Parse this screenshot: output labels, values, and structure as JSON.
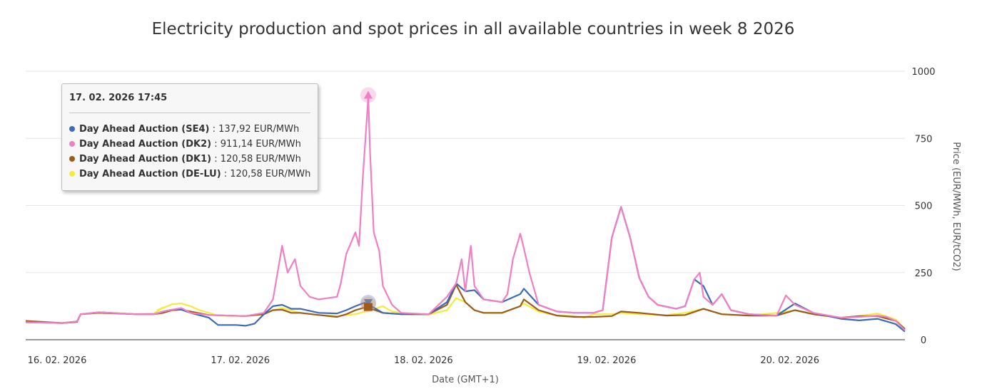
{
  "chart_data": {
    "type": "line",
    "title": "Electricity production and spot prices in all available countries in week 8 2026",
    "xlabel": "Date (GMT+1)",
    "ylabel": "Price (EUR/MWh, EUR/tCO2)",
    "ylim": [
      0,
      1000
    ],
    "xlim": [
      0,
      4.8
    ],
    "y_ticks": [
      "0",
      "250",
      "500",
      "750",
      "1000"
    ],
    "x_ticks": [
      {
        "label": "16. 02. 2026",
        "day": 0
      },
      {
        "label": "17. 02. 2026",
        "day": 1
      },
      {
        "label": "18. 02. 2026",
        "day": 2
      },
      {
        "label": "19. 02. 2026",
        "day": 3
      },
      {
        "label": "20. 02. 2026",
        "day": 4
      }
    ],
    "grid": true,
    "series": [
      {
        "name": "Day Ahead Auction (DE-LU)",
        "color": "#f2ec3a",
        "points": [
          [
            0,
            65
          ],
          [
            0.2,
            63
          ],
          [
            0.28,
            68
          ],
          [
            0.3,
            95
          ],
          [
            0.4,
            102
          ],
          [
            0.6,
            96
          ],
          [
            0.7,
            98
          ],
          [
            0.75,
            120
          ],
          [
            0.72,
            110
          ],
          [
            0.8,
            132
          ],
          [
            0.85,
            135
          ],
          [
            0.9,
            125
          ],
          [
            0.95,
            110
          ],
          [
            1.05,
            90
          ],
          [
            1.2,
            88
          ],
          [
            1.3,
            98
          ],
          [
            1.35,
            110
          ],
          [
            1.4,
            118
          ],
          [
            1.5,
            100
          ],
          [
            1.6,
            92
          ],
          [
            1.7,
            88
          ],
          [
            1.8,
            95
          ],
          [
            1.88,
            110
          ],
          [
            1.95,
            125
          ],
          [
            2.0,
            105
          ],
          [
            2.1,
            95
          ],
          [
            2.2,
            94
          ],
          [
            2.3,
            110
          ],
          [
            2.35,
            155
          ],
          [
            2.4,
            140
          ],
          [
            2.45,
            110
          ],
          [
            2.5,
            100
          ],
          [
            2.6,
            100
          ],
          [
            2.7,
            125
          ],
          [
            2.72,
            135
          ],
          [
            2.8,
            105
          ],
          [
            2.9,
            90
          ],
          [
            3.0,
            88
          ],
          [
            3.05,
            82
          ],
          [
            3.1,
            95
          ],
          [
            3.2,
            95
          ],
          [
            3.25,
            100
          ],
          [
            3.35,
            95
          ],
          [
            3.5,
            92
          ],
          [
            3.6,
            100
          ],
          [
            3.7,
            115
          ],
          [
            3.8,
            95
          ],
          [
            3.95,
            90
          ],
          [
            4.1,
            100
          ],
          [
            4.2,
            110
          ],
          [
            4.35,
            90
          ],
          [
            4.45,
            82
          ],
          [
            4.55,
            88
          ],
          [
            4.65,
            98
          ],
          [
            4.75,
            75
          ],
          [
            4.8,
            40
          ]
        ]
      },
      {
        "name": "Day Ahead Auction (DK1)",
        "color": "#9c5a1c",
        "points": [
          [
            0,
            70
          ],
          [
            0.2,
            62
          ],
          [
            0.28,
            66
          ],
          [
            0.3,
            95
          ],
          [
            0.4,
            100
          ],
          [
            0.6,
            95
          ],
          [
            0.7,
            95
          ],
          [
            0.75,
            100
          ],
          [
            0.8,
            110
          ],
          [
            0.85,
            112
          ],
          [
            0.9,
            105
          ],
          [
            1.0,
            92
          ],
          [
            1.2,
            88
          ],
          [
            1.3,
            95
          ],
          [
            1.35,
            110
          ],
          [
            1.4,
            112
          ],
          [
            1.45,
            100
          ],
          [
            1.5,
            100
          ],
          [
            1.6,
            92
          ],
          [
            1.7,
            85
          ],
          [
            1.75,
            95
          ],
          [
            1.8,
            110
          ],
          [
            1.85,
            120
          ],
          [
            1.9,
            112
          ],
          [
            1.95,
            100
          ],
          [
            2.05,
            95
          ],
          [
            2.2,
            95
          ],
          [
            2.3,
            130
          ],
          [
            2.35,
            205
          ],
          [
            2.4,
            140
          ],
          [
            2.45,
            110
          ],
          [
            2.5,
            100
          ],
          [
            2.6,
            100
          ],
          [
            2.7,
            125
          ],
          [
            2.72,
            150
          ],
          [
            2.8,
            110
          ],
          [
            2.9,
            90
          ],
          [
            3.0,
            85
          ],
          [
            3.1,
            85
          ],
          [
            3.2,
            88
          ],
          [
            3.25,
            105
          ],
          [
            3.35,
            100
          ],
          [
            3.5,
            90
          ],
          [
            3.6,
            92
          ],
          [
            3.7,
            115
          ],
          [
            3.8,
            95
          ],
          [
            3.95,
            90
          ],
          [
            4.1,
            90
          ],
          [
            4.2,
            110
          ],
          [
            4.3,
            95
          ],
          [
            4.45,
            82
          ],
          [
            4.55,
            88
          ],
          [
            4.65,
            88
          ],
          [
            4.75,
            70
          ],
          [
            4.8,
            40
          ]
        ]
      },
      {
        "name": "Day Ahead Auction (SE4)",
        "color": "#3d6bb8",
        "points": [
          [
            0,
            65
          ],
          [
            0.2,
            62
          ],
          [
            0.28,
            68
          ],
          [
            0.3,
            95
          ],
          [
            0.4,
            102
          ],
          [
            0.6,
            95
          ],
          [
            0.7,
            95
          ],
          [
            0.75,
            105
          ],
          [
            0.8,
            112
          ],
          [
            0.85,
            112
          ],
          [
            0.9,
            100
          ],
          [
            1.0,
            82
          ],
          [
            1.05,
            55
          ],
          [
            1.15,
            55
          ],
          [
            1.2,
            52
          ],
          [
            1.25,
            60
          ],
          [
            1.3,
            95
          ],
          [
            1.35,
            125
          ],
          [
            1.4,
            130
          ],
          [
            1.45,
            115
          ],
          [
            1.5,
            115
          ],
          [
            1.6,
            100
          ],
          [
            1.7,
            98
          ],
          [
            1.75,
            110
          ],
          [
            1.8,
            125
          ],
          [
            1.85,
            138
          ],
          [
            1.9,
            120
          ],
          [
            1.95,
            100
          ],
          [
            2.05,
            95
          ],
          [
            2.2,
            95
          ],
          [
            2.3,
            140
          ],
          [
            2.35,
            210
          ],
          [
            2.4,
            180
          ],
          [
            2.45,
            185
          ],
          [
            2.5,
            150
          ],
          [
            2.6,
            140
          ],
          [
            2.7,
            170
          ],
          [
            2.72,
            190
          ],
          [
            2.8,
            130
          ],
          [
            2.9,
            105
          ],
          [
            3.0,
            100
          ],
          [
            3.1,
            100
          ],
          [
            3.15,
            110
          ],
          [
            3.2,
            380
          ],
          [
            3.25,
            495
          ],
          [
            3.3,
            380
          ],
          [
            3.35,
            230
          ],
          [
            3.4,
            160
          ],
          [
            3.45,
            130
          ],
          [
            3.55,
            115
          ],
          [
            3.6,
            125
          ],
          [
            3.65,
            225
          ],
          [
            3.7,
            200
          ],
          [
            3.75,
            130
          ],
          [
            3.8,
            170
          ],
          [
            3.85,
            110
          ],
          [
            3.95,
            95
          ],
          [
            4.1,
            90
          ],
          [
            4.2,
            135
          ],
          [
            4.3,
            100
          ],
          [
            4.45,
            78
          ],
          [
            4.55,
            72
          ],
          [
            4.65,
            78
          ],
          [
            4.75,
            58
          ],
          [
            4.8,
            30
          ]
        ]
      },
      {
        "name": "Day Ahead Auction (DK2)",
        "color": "#f07fc4",
        "points": [
          [
            0,
            65
          ],
          [
            0.2,
            62
          ],
          [
            0.28,
            68
          ],
          [
            0.3,
            95
          ],
          [
            0.4,
            102
          ],
          [
            0.6,
            95
          ],
          [
            0.7,
            95
          ],
          [
            0.75,
            105
          ],
          [
            0.8,
            112
          ],
          [
            0.85,
            118
          ],
          [
            0.9,
            100
          ],
          [
            1.0,
            92
          ],
          [
            1.2,
            88
          ],
          [
            1.3,
            100
          ],
          [
            1.35,
            150
          ],
          [
            1.4,
            350
          ],
          [
            1.43,
            250
          ],
          [
            1.47,
            300
          ],
          [
            1.5,
            200
          ],
          [
            1.55,
            160
          ],
          [
            1.6,
            150
          ],
          [
            1.7,
            160
          ],
          [
            1.72,
            210
          ],
          [
            1.75,
            320
          ],
          [
            1.8,
            400
          ],
          [
            1.82,
            350
          ],
          [
            1.84,
            600
          ],
          [
            1.86,
            800
          ],
          [
            1.87,
            905
          ],
          [
            1.88,
            700
          ],
          [
            1.9,
            400
          ],
          [
            1.93,
            330
          ],
          [
            1.95,
            200
          ],
          [
            2.0,
            130
          ],
          [
            2.05,
            100
          ],
          [
            2.2,
            95
          ],
          [
            2.3,
            160
          ],
          [
            2.35,
            210
          ],
          [
            2.38,
            300
          ],
          [
            2.4,
            180
          ],
          [
            2.43,
            350
          ],
          [
            2.45,
            200
          ],
          [
            2.5,
            150
          ],
          [
            2.6,
            140
          ],
          [
            2.63,
            170
          ],
          [
            2.66,
            300
          ],
          [
            2.7,
            395
          ],
          [
            2.72,
            340
          ],
          [
            2.75,
            250
          ],
          [
            2.8,
            130
          ],
          [
            2.9,
            105
          ],
          [
            3.0,
            100
          ],
          [
            3.1,
            100
          ],
          [
            3.15,
            110
          ],
          [
            3.2,
            380
          ],
          [
            3.25,
            495
          ],
          [
            3.3,
            380
          ],
          [
            3.35,
            230
          ],
          [
            3.4,
            160
          ],
          [
            3.45,
            130
          ],
          [
            3.55,
            115
          ],
          [
            3.6,
            125
          ],
          [
            3.65,
            225
          ],
          [
            3.68,
            250
          ],
          [
            3.7,
            160
          ],
          [
            3.75,
            130
          ],
          [
            3.8,
            170
          ],
          [
            3.85,
            110
          ],
          [
            3.95,
            95
          ],
          [
            4.1,
            90
          ],
          [
            4.15,
            165
          ],
          [
            4.2,
            130
          ],
          [
            4.3,
            100
          ],
          [
            4.45,
            82
          ],
          [
            4.55,
            85
          ],
          [
            4.65,
            90
          ],
          [
            4.7,
            85
          ],
          [
            4.75,
            70
          ],
          [
            4.8,
            35
          ]
        ]
      }
    ],
    "hover": {
      "day": 1.87
    }
  },
  "tooltip": {
    "header": "17. 02. 2026 17:45",
    "rows": [
      {
        "name": "Day Ahead Auction (SE4)",
        "value": " : 137,92 EUR/MWh",
        "color": "#3d6bb8"
      },
      {
        "name": "Day Ahead Auction (DK2)",
        "value": " : 911,14 EUR/MWh",
        "color": "#f07fc4"
      },
      {
        "name": "Day Ahead Auction (DK1)",
        "value": " : 120,58 EUR/MWh",
        "color": "#9c5a1c"
      },
      {
        "name": "Day Ahead Auction (DE-LU)",
        "value": " : 120,58 EUR/MWh",
        "color": "#f2ec3a"
      }
    ]
  }
}
